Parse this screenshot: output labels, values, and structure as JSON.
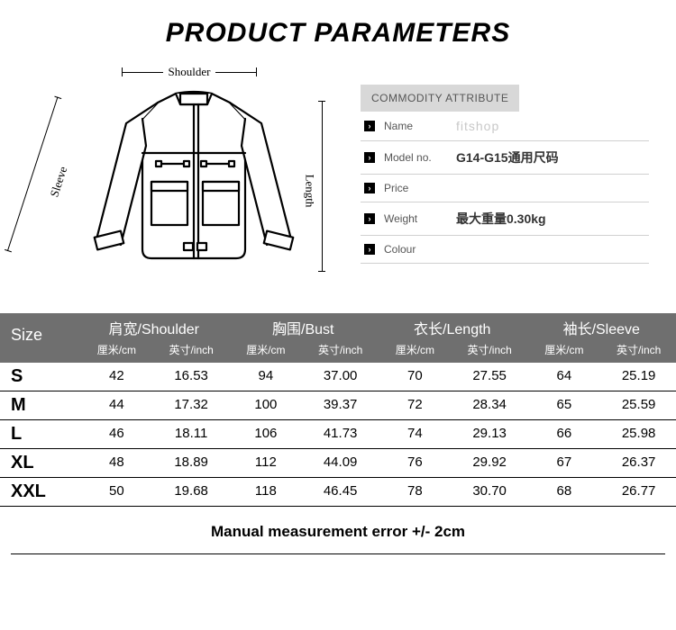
{
  "page_title": "PRODUCT PARAMETERS",
  "title_fontsize": 30,
  "diagram_labels": {
    "shoulder": "Shoulder",
    "sleeve": "Sleeve",
    "length": "Length"
  },
  "attributes": {
    "header": "COMMODITY ATTRIBUTE",
    "rows": [
      {
        "label": "Name",
        "value": "fitshop",
        "faded": true
      },
      {
        "label": "Model no.",
        "value": "G14-G15通用尺码",
        "faded": false
      },
      {
        "label": "Price",
        "value": "",
        "faded": false
      },
      {
        "label": "Weight",
        "value": "最大重量0.30kg",
        "faded": false
      },
      {
        "label": "Colour",
        "value": "",
        "faded": false
      }
    ]
  },
  "size_table": {
    "header_bg": "#6f6f6f",
    "header_fg": "#ffffff",
    "border_color": "#000000",
    "size_label": "Size",
    "groups": [
      {
        "title": "肩宽/Shoulder",
        "sub": [
          "厘米/cm",
          "英寸/inch"
        ]
      },
      {
        "title": "胸围/Bust",
        "sub": [
          "厘米/cm",
          "英寸/inch"
        ]
      },
      {
        "title": "衣长/Length",
        "sub": [
          "厘米/cm",
          "英寸/inch"
        ]
      },
      {
        "title": "袖长/Sleeve",
        "sub": [
          "厘米/cm",
          "英寸/inch"
        ]
      }
    ],
    "rows": [
      {
        "size": "S",
        "cells": [
          "42",
          "16.53",
          "94",
          "37.00",
          "70",
          "27.55",
          "64",
          "25.19"
        ]
      },
      {
        "size": "M",
        "cells": [
          "44",
          "17.32",
          "100",
          "39.37",
          "72",
          "28.34",
          "65",
          "25.59"
        ]
      },
      {
        "size": "L",
        "cells": [
          "46",
          "18.11",
          "106",
          "41.73",
          "74",
          "29.13",
          "66",
          "25.98"
        ]
      },
      {
        "size": "XL",
        "cells": [
          "48",
          "18.89",
          "112",
          "44.09",
          "76",
          "29.92",
          "67",
          "26.37"
        ]
      },
      {
        "size": "XXL",
        "cells": [
          "50",
          "19.68",
          "118",
          "46.45",
          "78",
          "30.70",
          "68",
          "26.77"
        ]
      }
    ]
  },
  "footer_note": "Manual measurement error +/- 2cm"
}
